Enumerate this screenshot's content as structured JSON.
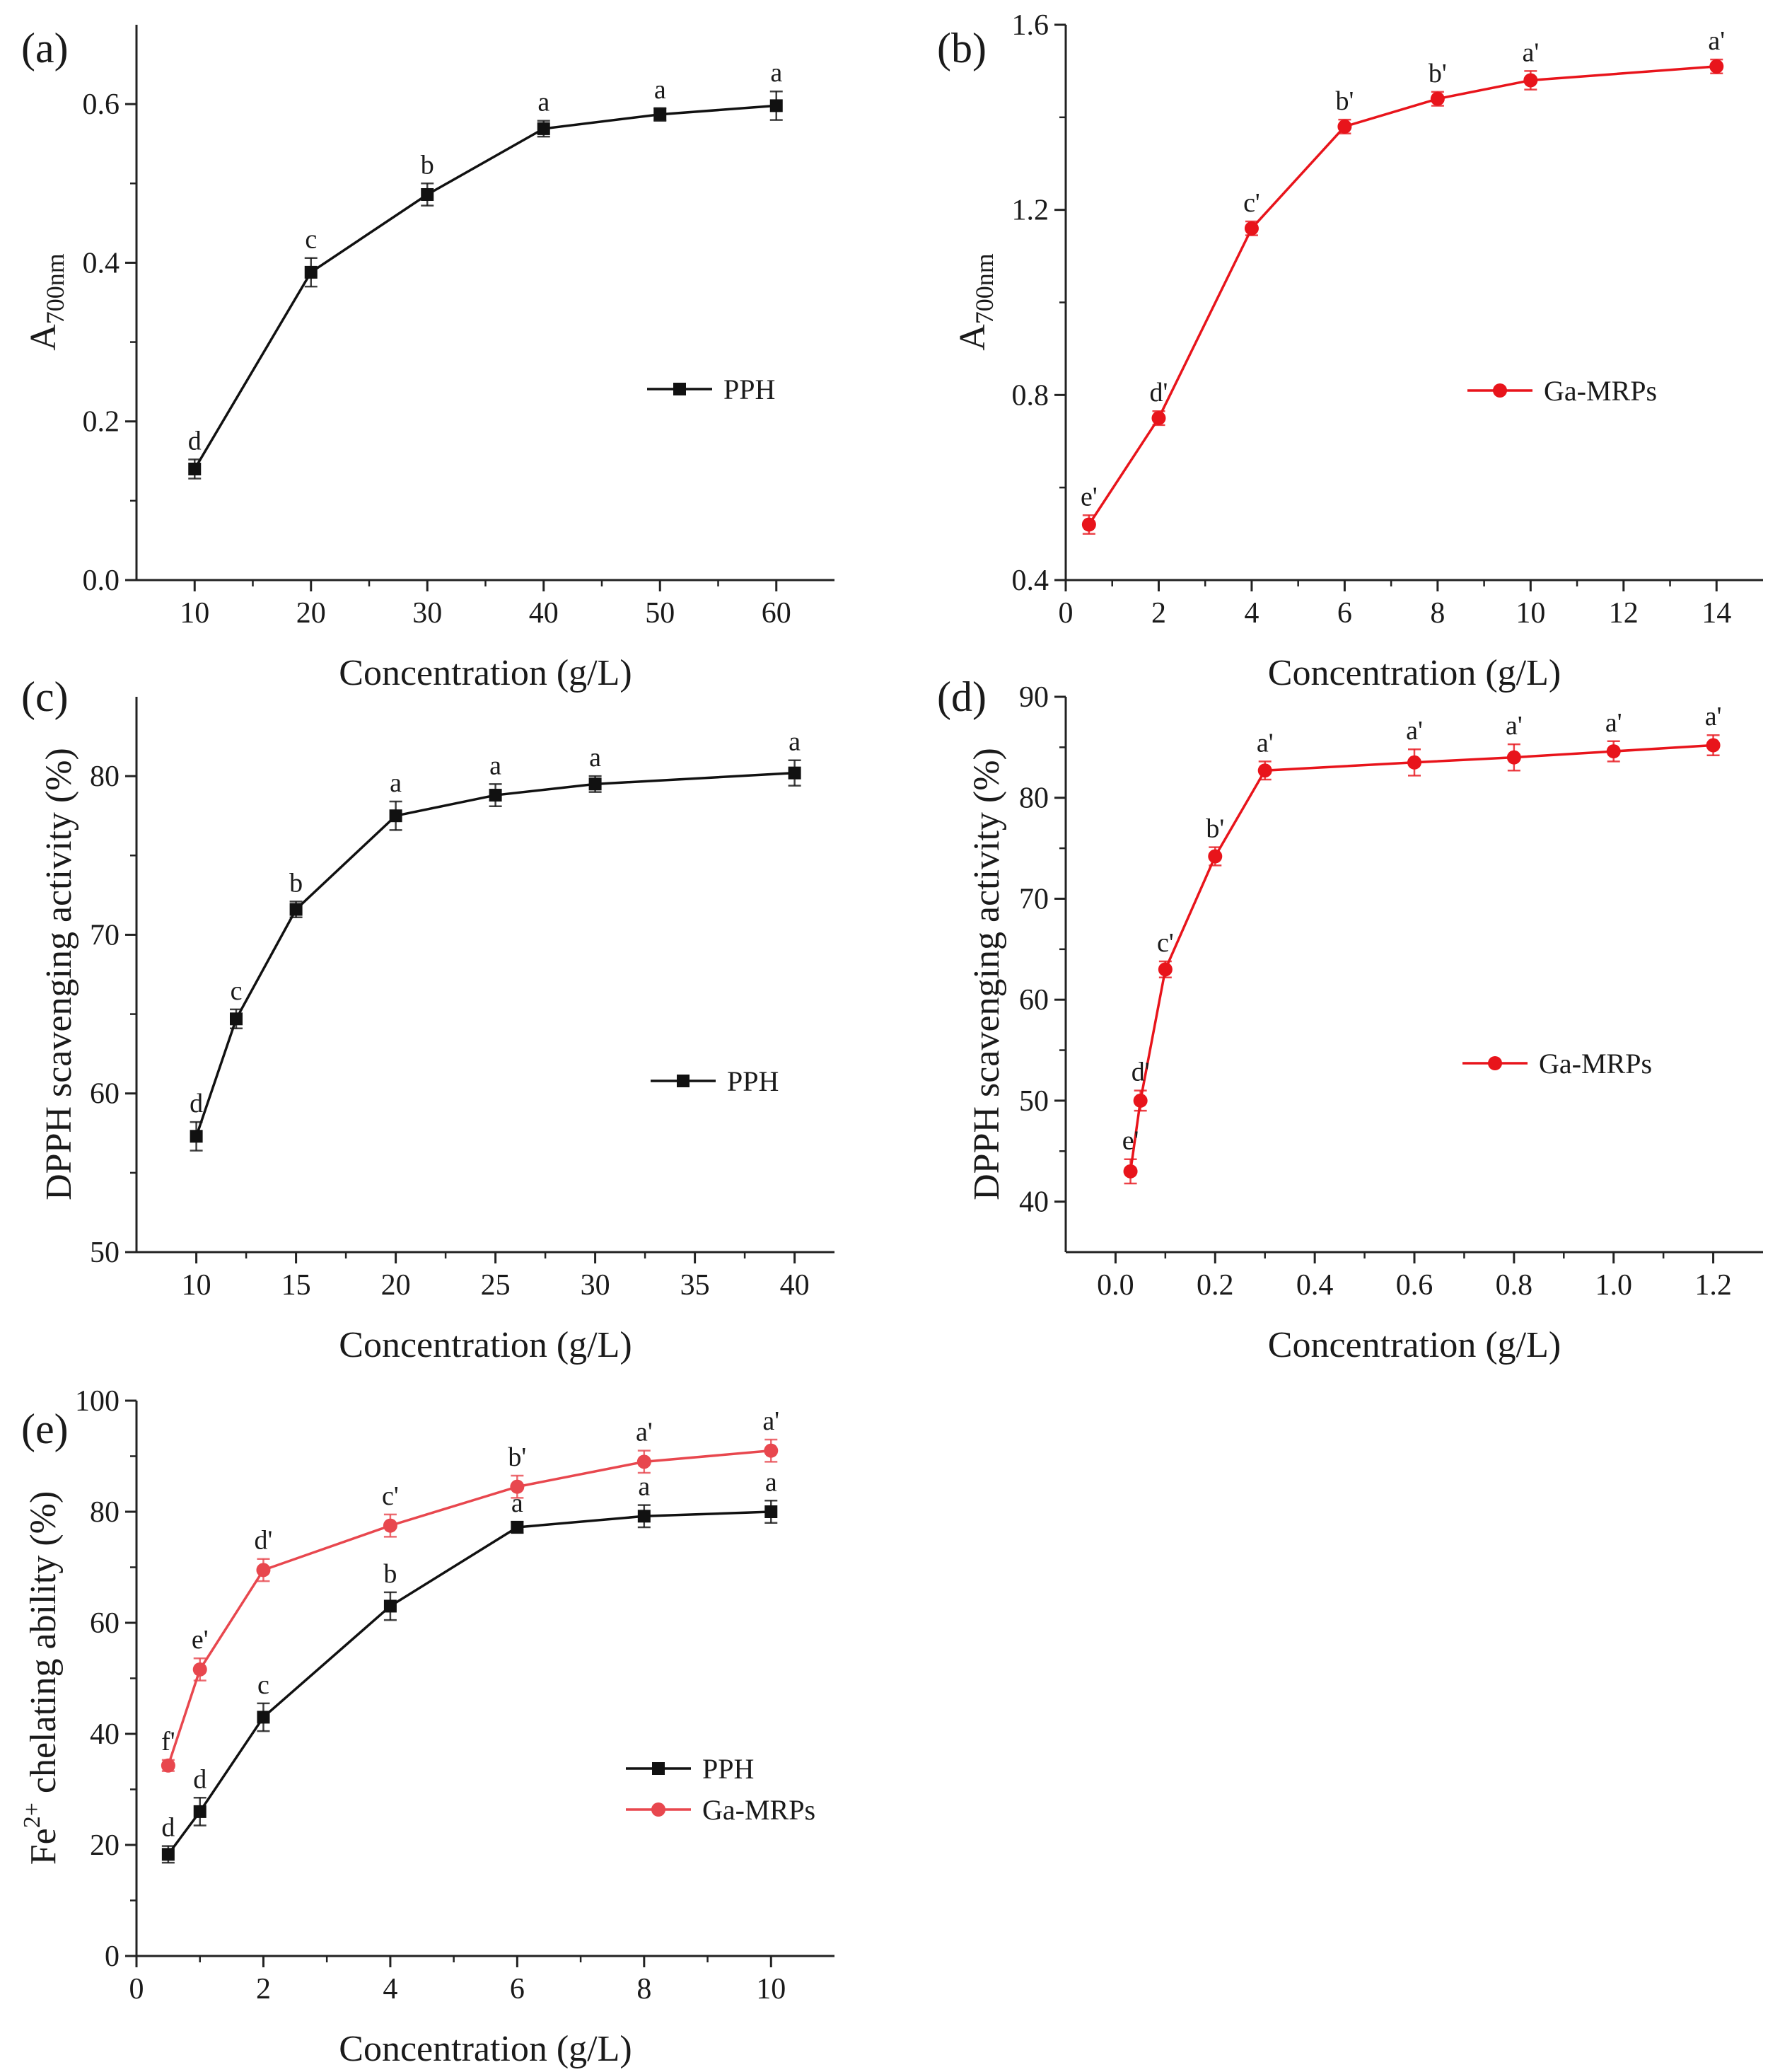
{
  "figure": {
    "name": "antioxidant-activity-figure"
  },
  "chart_data": [
    {
      "id": "a",
      "panel_label": "(a)",
      "type": "line",
      "xlabel": "Concentration (g/L)",
      "ylabel": "A",
      "ylabel_sub": "700nm",
      "xlim": [
        5,
        65
      ],
      "ylim": [
        0.0,
        0.7
      ],
      "xticks": [
        10,
        20,
        30,
        40,
        50,
        60
      ],
      "xtick_labels": [
        "10",
        "20",
        "30",
        "40",
        "50",
        "60"
      ],
      "yticks": [
        0.0,
        0.2,
        0.4,
        0.6
      ],
      "ytick_labels": [
        "0.0",
        "0.2",
        "0.4",
        "0.6"
      ],
      "legend_position": "center-right",
      "series": [
        {
          "name": "PPH",
          "color": "#111111",
          "marker": "square",
          "x": [
            10,
            20,
            30,
            40,
            50,
            60
          ],
          "y": [
            0.14,
            0.388,
            0.486,
            0.569,
            0.587,
            0.598
          ],
          "err": [
            0.012,
            0.018,
            0.014,
            0.01,
            0.008,
            0.018
          ],
          "point_labels": [
            "d",
            "c",
            "b",
            "a",
            "a",
            "a"
          ]
        }
      ]
    },
    {
      "id": "b",
      "panel_label": "(b)",
      "type": "line",
      "xlabel": "Concentration (g/L)",
      "ylabel": "A",
      "ylabel_sub": "700nm",
      "xlim": [
        0,
        15
      ],
      "ylim": [
        0.4,
        1.6
      ],
      "xticks": [
        0,
        2,
        4,
        6,
        8,
        10,
        12,
        14
      ],
      "xtick_labels": [
        "0",
        "2",
        "4",
        "6",
        "8",
        "10",
        "12",
        "14"
      ],
      "yticks": [
        0.4,
        0.8,
        1.2,
        1.6
      ],
      "ytick_labels": [
        "0.4",
        "0.8",
        "1.2",
        "1.6"
      ],
      "legend_position": "center-right",
      "series": [
        {
          "name": "Ga-MRPs",
          "color": "#e8141b",
          "marker": "circle",
          "x": [
            0.5,
            2,
            4,
            6,
            8,
            10,
            14
          ],
          "y": [
            0.52,
            0.75,
            1.16,
            1.38,
            1.44,
            1.48,
            1.51
          ],
          "err": [
            0.02,
            0.015,
            0.015,
            0.015,
            0.015,
            0.02,
            0.015
          ],
          "point_labels": [
            "e'",
            "d'",
            "c'",
            "b'",
            "b'",
            "a'",
            "a'"
          ]
        }
      ]
    },
    {
      "id": "c",
      "panel_label": "(c)",
      "type": "line",
      "xlabel": "Concentration (g/L)",
      "ylabel": "DPPH scavenging activity (%)",
      "xlim": [
        7,
        42
      ],
      "ylim": [
        50,
        85
      ],
      "xticks": [
        10,
        15,
        20,
        25,
        30,
        35,
        40
      ],
      "xtick_labels": [
        "10",
        "15",
        "20",
        "25",
        "30",
        "35",
        "40"
      ],
      "yticks": [
        50,
        60,
        70,
        80
      ],
      "ytick_labels": [
        "50",
        "60",
        "70",
        "80"
      ],
      "legend_position": "center-right",
      "series": [
        {
          "name": "PPH",
          "color": "#111111",
          "marker": "square",
          "x": [
            10,
            12,
            15,
            20,
            25,
            30,
            40
          ],
          "y": [
            57.3,
            64.7,
            71.6,
            77.5,
            78.8,
            79.5,
            80.2
          ],
          "err": [
            0.9,
            0.6,
            0.5,
            0.9,
            0.7,
            0.5,
            0.8
          ],
          "point_labels": [
            "d",
            "c",
            "b",
            "a",
            "a",
            "a",
            "a"
          ]
        }
      ]
    },
    {
      "id": "d",
      "panel_label": "(d)",
      "type": "line",
      "xlabel": "Concentration (g/L)",
      "ylabel": "DPPH scavenging activity (%)",
      "xlim": [
        -0.1,
        1.3
      ],
      "ylim": [
        35,
        90
      ],
      "xticks": [
        0.0,
        0.2,
        0.4,
        0.6,
        0.8,
        1.0,
        1.2
      ],
      "xtick_labels": [
        "0.0",
        "0.2",
        "0.4",
        "0.6",
        "0.8",
        "1.0",
        "1.2"
      ],
      "yticks": [
        40,
        50,
        60,
        70,
        80,
        90
      ],
      "ytick_labels": [
        "40",
        "50",
        "60",
        "70",
        "80",
        "90"
      ],
      "legend_position": "center-right",
      "series": [
        {
          "name": "Ga-MRPs",
          "color": "#e8141b",
          "marker": "circle",
          "x": [
            0.03,
            0.05,
            0.1,
            0.2,
            0.3,
            0.6,
            0.8,
            1.0,
            1.2
          ],
          "y": [
            43,
            50,
            63,
            74.2,
            82.7,
            83.5,
            84,
            84.6,
            85.2
          ],
          "err": [
            1.2,
            1.0,
            0.8,
            0.9,
            0.9,
            1.3,
            1.3,
            1.0,
            1.0
          ],
          "point_labels": [
            "e'",
            "d'",
            "c'",
            "b'",
            "a'",
            "a'",
            "a'",
            "a'",
            "a'"
          ]
        }
      ]
    },
    {
      "id": "e",
      "panel_label": "(e)",
      "type": "line",
      "xlabel": "Concentration (g/L)",
      "ylabel": "Fe",
      "ylabel_sup": "2+",
      "ylabel_rest": " chelating ability (%)",
      "xlim": [
        0,
        11
      ],
      "ylim": [
        0,
        100
      ],
      "xticks": [
        0,
        2,
        4,
        6,
        8,
        10
      ],
      "xtick_labels": [
        "0",
        "2",
        "4",
        "6",
        "8",
        "10"
      ],
      "yticks": [
        0,
        20,
        40,
        60,
        80,
        100
      ],
      "ytick_labels": [
        "0",
        "20",
        "40",
        "60",
        "80",
        "100"
      ],
      "legend_position": "lower-right",
      "series": [
        {
          "name": "PPH",
          "color": "#111111",
          "marker": "square",
          "x": [
            0.5,
            1,
            2,
            4,
            6,
            8,
            10
          ],
          "y": [
            18.3,
            26,
            43,
            63,
            77.2,
            79.2,
            80
          ],
          "err": [
            1.5,
            2.5,
            2.5,
            2.5,
            1.0,
            2.0,
            2.0
          ],
          "point_labels": [
            "d",
            "d",
            "c",
            "b",
            "a",
            "a",
            "a"
          ]
        },
        {
          "name": "Ga-MRPs",
          "color": "#e8474e",
          "marker": "circle",
          "x": [
            0.5,
            1,
            2,
            4,
            6,
            8,
            10
          ],
          "y": [
            34.3,
            51.6,
            69.5,
            77.5,
            84.5,
            89,
            91
          ],
          "err": [
            1.0,
            2.0,
            2.0,
            2.0,
            2.0,
            2.0,
            2.0
          ],
          "point_labels": [
            "f'",
            "e'",
            "d'",
            "c'",
            "b'",
            "a'",
            "a'"
          ]
        }
      ]
    }
  ]
}
